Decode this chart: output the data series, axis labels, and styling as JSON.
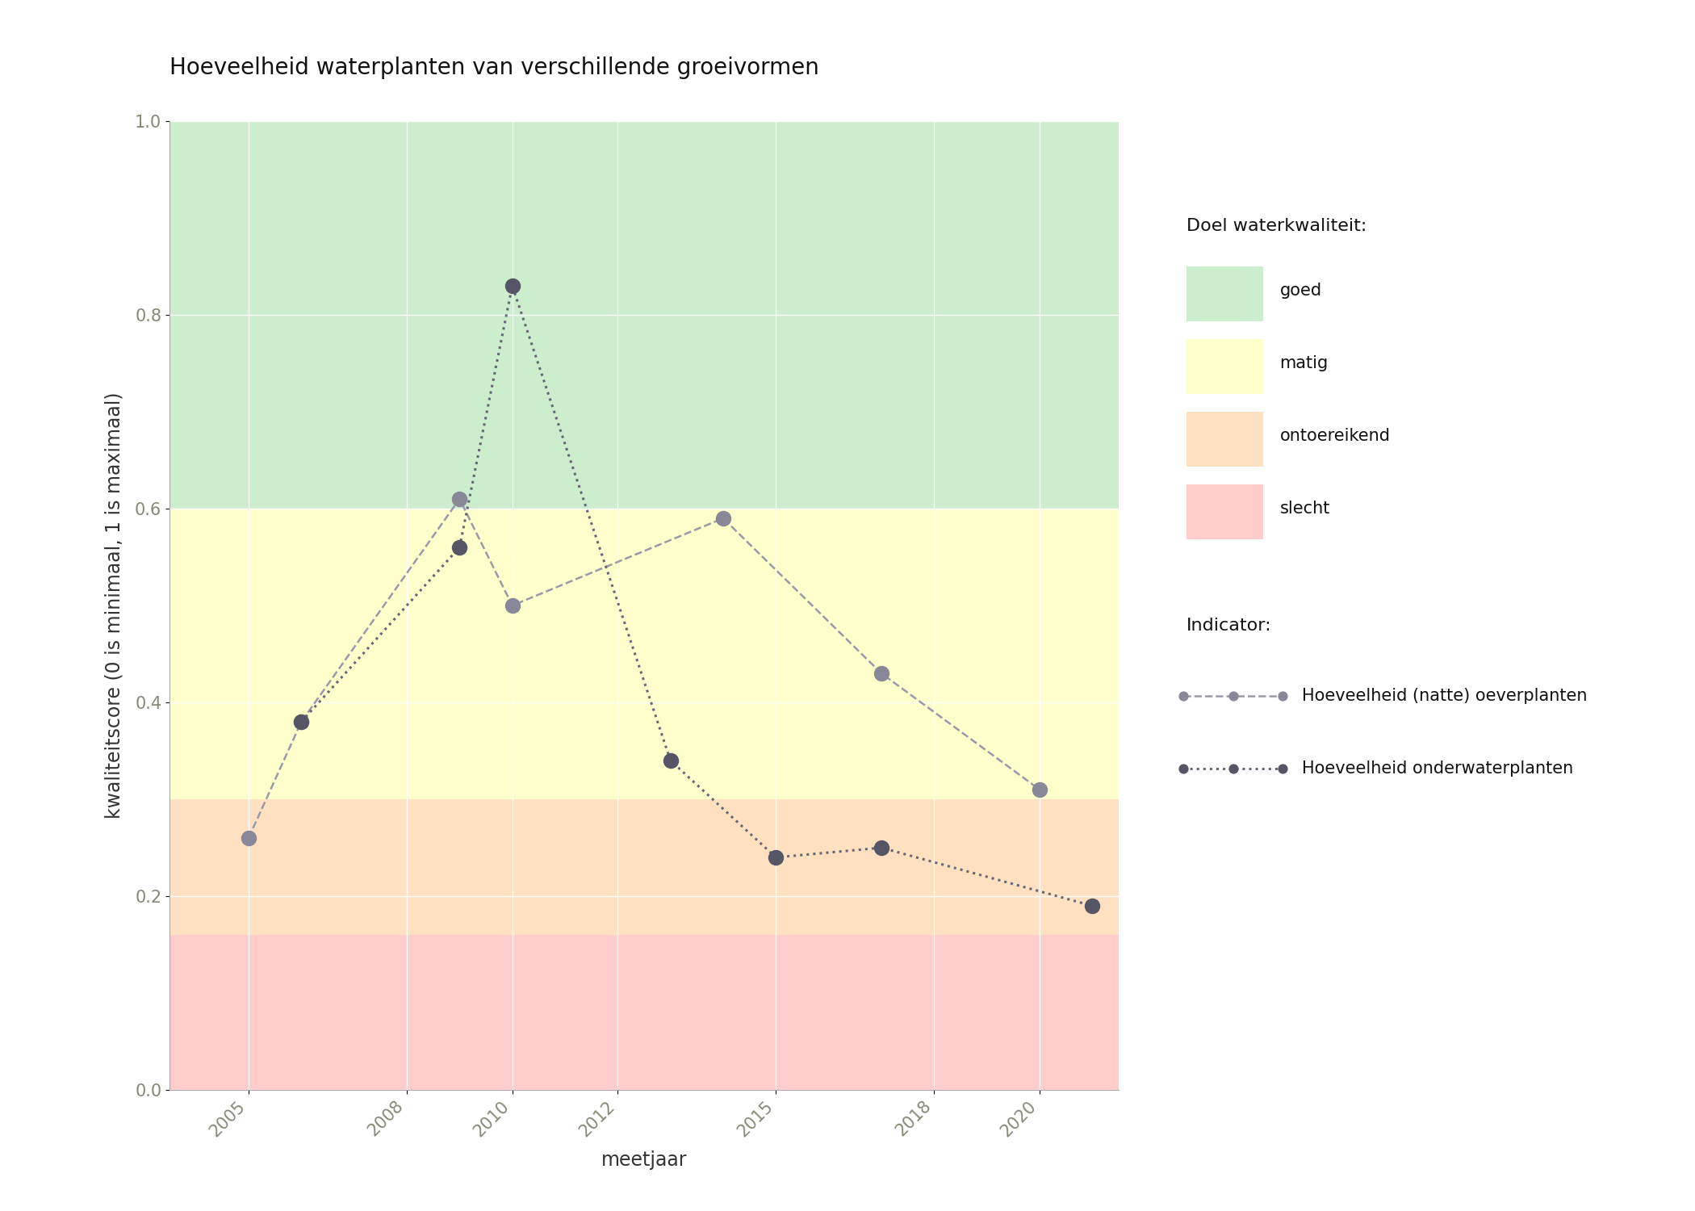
{
  "title": "Hoeveelheid waterplanten van verschillende groeivormen",
  "xlabel": "meetjaar",
  "ylabel": "kwaliteitscore (0 is minimaal, 1 is maximaal)",
  "xlim": [
    2003.5,
    2021.5
  ],
  "ylim": [
    0.0,
    1.0
  ],
  "x_ticks": [
    2005,
    2008,
    2010,
    2012,
    2015,
    2018,
    2020
  ],
  "y_ticks": [
    0.0,
    0.2,
    0.4,
    0.6,
    0.8,
    1.0
  ],
  "bg_color": "#ffffff",
  "plot_bg_color": "#ffffff",
  "bands": [
    {
      "ymin": 0.0,
      "ymax": 0.16,
      "color": "#FFCCCC",
      "label": "slecht"
    },
    {
      "ymin": 0.16,
      "ymax": 0.3,
      "color": "#FFE0C0",
      "label": "ontoereikend"
    },
    {
      "ymin": 0.3,
      "ymax": 0.6,
      "color": "#FFFFCC",
      "label": "matig"
    },
    {
      "ymin": 0.6,
      "ymax": 1.0,
      "color": "#CCEECC",
      "label": "goed"
    }
  ],
  "series": [
    {
      "name": "Hoeveelheid (natte) oeverplanten",
      "x": [
        2005,
        2006,
        2009,
        2010,
        2014,
        2017,
        2020
      ],
      "y": [
        0.26,
        0.38,
        0.61,
        0.5,
        0.59,
        0.43,
        0.31
      ],
      "linecolor": "#9999AA",
      "linestyle": "--",
      "linewidth": 1.8,
      "markersize": 13,
      "marker": "o",
      "markerfacecolor": "#888899",
      "markeredgecolor": "#888899",
      "zorder": 3
    },
    {
      "name": "Hoeveelheid onderwaterplanten",
      "x": [
        2006,
        2009,
        2010,
        2013,
        2015,
        2017,
        2021
      ],
      "y": [
        0.38,
        0.56,
        0.83,
        0.34,
        0.24,
        0.25,
        0.19
      ],
      "linecolor": "#666677",
      "linestyle": ":",
      "linewidth": 2.2,
      "markersize": 13,
      "marker": "o",
      "markerfacecolor": "#555566",
      "markeredgecolor": "#555566",
      "zorder": 4
    }
  ],
  "legend_doel_title": "Doel waterkwaliteit:",
  "legend_indicator_title": "Indicator:",
  "band_legend_colors": [
    "#CCEECC",
    "#FFFFCC",
    "#FFE0C0",
    "#FFCCCC"
  ],
  "band_legend_labels": [
    "goed",
    "matig",
    "ontoereikend",
    "slecht"
  ],
  "title_fontsize": 20,
  "axis_label_fontsize": 17,
  "tick_fontsize": 15,
  "legend_fontsize": 15,
  "legend_title_fontsize": 16
}
